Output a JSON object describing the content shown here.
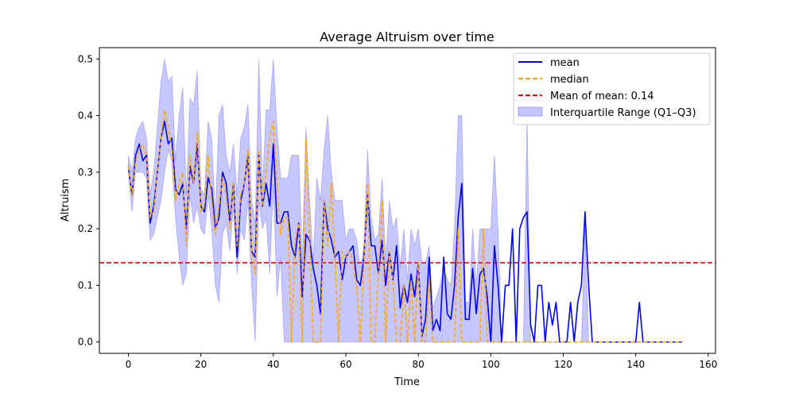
{
  "chart_data": {
    "type": "line",
    "title": "Average Altruism over time",
    "xlabel": "Time",
    "ylabel": "Altruism",
    "xlim": [
      -8,
      162
    ],
    "ylim": [
      -0.02,
      0.52
    ],
    "xticks": [
      0,
      20,
      40,
      60,
      80,
      100,
      120,
      140,
      160
    ],
    "yticks": [
      0.0,
      0.1,
      0.2,
      0.3,
      0.4,
      0.5
    ],
    "xtick_labels": [
      "0",
      "20",
      "40",
      "60",
      "80",
      "100",
      "120",
      "140",
      "160"
    ],
    "ytick_labels": [
      "0.0",
      "0.1",
      "0.2",
      "0.3",
      "0.4",
      "0.5"
    ],
    "grid": false,
    "legend_position": "top-right",
    "x": [
      0,
      1,
      2,
      3,
      4,
      5,
      6,
      7,
      8,
      9,
      10,
      11,
      12,
      13,
      14,
      15,
      16,
      17,
      18,
      19,
      20,
      21,
      22,
      23,
      24,
      25,
      26,
      27,
      28,
      29,
      30,
      31,
      32,
      33,
      34,
      35,
      36,
      37,
      38,
      39,
      40,
      41,
      42,
      43,
      44,
      45,
      46,
      47,
      48,
      49,
      50,
      51,
      52,
      53,
      54,
      55,
      56,
      57,
      58,
      59,
      60,
      61,
      62,
      63,
      64,
      65,
      66,
      67,
      68,
      69,
      70,
      71,
      72,
      73,
      74,
      75,
      76,
      77,
      78,
      79,
      80,
      81,
      82,
      83,
      84,
      85,
      86,
      87,
      88,
      89,
      90,
      91,
      92,
      93,
      94,
      95,
      96,
      97,
      98,
      99,
      100,
      101,
      102,
      103,
      104,
      105,
      106,
      107,
      108,
      109,
      110,
      111,
      112,
      113,
      114,
      115,
      116,
      117,
      118,
      119,
      120,
      121,
      122,
      123,
      124,
      125,
      126,
      127,
      128,
      129,
      130,
      131,
      132,
      133,
      134,
      135,
      136,
      137,
      138,
      139,
      140,
      141,
      142,
      143,
      144,
      145,
      146,
      147,
      148,
      149,
      150,
      151,
      152,
      153
    ],
    "series": [
      {
        "name": "mean",
        "style": "solid",
        "color": "#0000ff",
        "values": [
          0.31,
          0.26,
          0.33,
          0.35,
          0.32,
          0.33,
          0.21,
          0.24,
          0.3,
          0.36,
          0.39,
          0.35,
          0.36,
          0.27,
          0.26,
          0.28,
          0.2,
          0.31,
          0.28,
          0.35,
          0.24,
          0.23,
          0.29,
          0.27,
          0.2,
          0.22,
          0.3,
          0.28,
          0.21,
          0.28,
          0.15,
          0.25,
          0.28,
          0.33,
          0.16,
          0.15,
          0.33,
          0.24,
          0.28,
          0.24,
          0.35,
          0.21,
          0.21,
          0.23,
          0.23,
          0.17,
          0.15,
          0.21,
          0.08,
          0.19,
          0.18,
          0.13,
          0.1,
          0.05,
          0.25,
          0.2,
          0.18,
          0.15,
          0.16,
          0.11,
          0.15,
          0.16,
          0.17,
          0.11,
          0.1,
          0.15,
          0.26,
          0.17,
          0.17,
          0.12,
          0.18,
          0.1,
          0.16,
          0.11,
          0.17,
          0.06,
          0.1,
          0.07,
          0.12,
          0.08,
          0.14,
          0.01,
          0.04,
          0.15,
          0.02,
          0.04,
          0.02,
          0.15,
          0.05,
          0.04,
          0.1,
          0.22,
          0.28,
          0.04,
          0.04,
          0.13,
          0.05,
          0.12,
          0.13,
          0.08,
          0.0,
          0.17,
          0.1,
          0.0,
          0.1,
          0.1,
          0.2,
          0.0,
          0.2,
          0.22,
          0.23,
          0.03,
          0.0,
          0.1,
          0.1,
          0.0,
          0.07,
          0.03,
          0.07,
          0.0,
          0.0,
          0.0,
          0.07,
          0.0,
          0.07,
          0.1,
          0.23,
          0.1,
          0.0,
          0.0,
          0.0,
          0.0,
          0.0,
          0.0,
          0.0,
          0.0,
          0.0,
          0.0,
          0.0,
          0.0,
          0.0,
          0.07,
          0.0,
          0.0,
          0.0,
          0.0,
          0.0,
          0.0,
          0.0,
          0.0,
          0.0,
          0.0,
          0.0,
          0.0
        ]
      },
      {
        "name": "median",
        "style": "dashed",
        "color": "#ffa500",
        "values": [
          0.31,
          0.26,
          0.32,
          0.34,
          0.35,
          0.33,
          0.22,
          0.23,
          0.3,
          0.36,
          0.41,
          0.38,
          0.34,
          0.25,
          0.28,
          0.3,
          0.17,
          0.33,
          0.28,
          0.37,
          0.23,
          0.24,
          0.33,
          0.25,
          0.19,
          0.24,
          0.29,
          0.26,
          0.2,
          0.28,
          0.17,
          0.26,
          0.28,
          0.34,
          0.16,
          0.12,
          0.34,
          0.24,
          0.3,
          0.36,
          0.39,
          0.28,
          0.19,
          0.22,
          0.22,
          0.0,
          0.18,
          0.21,
          0.0,
          0.36,
          0.18,
          0.0,
          0.0,
          0.0,
          0.25,
          0.17,
          0.28,
          0.15,
          0.0,
          0.16,
          0.15,
          0.16,
          0.14,
          0.1,
          0.0,
          0.14,
          0.28,
          0.0,
          0.0,
          0.12,
          0.25,
          0.0,
          0.16,
          0.11,
          0.0,
          0.0,
          0.1,
          0.0,
          0.11,
          0.0,
          0.14,
          0.0,
          0.0,
          0.11,
          0.0,
          0.0,
          0.0,
          0.0,
          0.0,
          0.0,
          0.0,
          0.2,
          0.0,
          0.0,
          0.0,
          0.0,
          0.0,
          0.0,
          0.2,
          0.0,
          0.0,
          0.0,
          0.0,
          0.0,
          0.0,
          0.0,
          0.0,
          0.0,
          0.0,
          0.0,
          0.0,
          0.0,
          0.0,
          0.0,
          0.0,
          0.0,
          0.0,
          0.0,
          0.0,
          0.0,
          0.0,
          0.0,
          0.0,
          0.0,
          0.0,
          0.0,
          0.0,
          0.0,
          0.0,
          0.0,
          0.0,
          0.0,
          0.0,
          0.0,
          0.0,
          0.0,
          0.0,
          0.0,
          0.0,
          0.0,
          0.0,
          0.0,
          0.0,
          0.0,
          0.0,
          0.0,
          0.0,
          0.0,
          0.0,
          0.0,
          0.0,
          0.0,
          0.0,
          0.0
        ]
      }
    ],
    "band": {
      "name": "Interquartile Range (Q1–Q3)",
      "color": "#0000ff",
      "opacity": 0.22,
      "q1": [
        0.3,
        0.23,
        0.3,
        0.3,
        0.3,
        0.29,
        0.18,
        0.19,
        0.22,
        0.25,
        0.3,
        0.34,
        0.32,
        0.22,
        0.15,
        0.1,
        0.12,
        0.26,
        0.21,
        0.24,
        0.2,
        0.19,
        0.26,
        0.2,
        0.1,
        0.07,
        0.19,
        0.21,
        0.16,
        0.24,
        0.12,
        0.2,
        0.18,
        0.25,
        0.1,
        0.0,
        0.25,
        0.2,
        0.22,
        0.12,
        0.28,
        0.08,
        0.15,
        0.0,
        0.0,
        0.0,
        0.0,
        0.0,
        0.0,
        0.0,
        0.0,
        0.0,
        0.0,
        0.0,
        0.0,
        0.0,
        0.0,
        0.0,
        0.0,
        0.0,
        0.0,
        0.0,
        0.0,
        0.0,
        0.0,
        0.0,
        0.0,
        0.0,
        0.0,
        0.0,
        0.0,
        0.0,
        0.0,
        0.0,
        0.0,
        0.0,
        0.0,
        0.0,
        0.0,
        0.0,
        0.0,
        0.0,
        0.0,
        0.0,
        0.0,
        0.0,
        0.0,
        0.0,
        0.0,
        0.0,
        0.0,
        0.0,
        0.0,
        0.0,
        0.0,
        0.0,
        0.0,
        0.0,
        0.0,
        0.0,
        0.0,
        0.0,
        0.0,
        0.0,
        0.0,
        0.0,
        0.0,
        0.0,
        0.0,
        0.0,
        0.0,
        0.0,
        0.0,
        0.0,
        0.0,
        0.0,
        0.0,
        0.0,
        0.0,
        0.0,
        0.0,
        0.0,
        0.0,
        0.0,
        0.0,
        0.0,
        0.0,
        0.0,
        0.0,
        0.0,
        0.0,
        0.0,
        0.0,
        0.0,
        0.0,
        0.0,
        0.0,
        0.0,
        0.0,
        0.0,
        0.0,
        0.0,
        0.0,
        0.0,
        0.0,
        0.0,
        0.0,
        0.0,
        0.0,
        0.0,
        0.0,
        0.0,
        0.0,
        0.0
      ],
      "q3": [
        0.33,
        0.3,
        0.36,
        0.38,
        0.39,
        0.36,
        0.26,
        0.3,
        0.38,
        0.46,
        0.5,
        0.46,
        0.47,
        0.32,
        0.4,
        0.45,
        0.26,
        0.43,
        0.42,
        0.48,
        0.27,
        0.26,
        0.39,
        0.36,
        0.22,
        0.4,
        0.42,
        0.33,
        0.3,
        0.35,
        0.26,
        0.36,
        0.38,
        0.42,
        0.25,
        0.21,
        0.5,
        0.27,
        0.41,
        0.41,
        0.5,
        0.38,
        0.29,
        0.29,
        0.29,
        0.33,
        0.33,
        0.33,
        0.14,
        0.38,
        0.25,
        0.14,
        0.29,
        0.25,
        0.34,
        0.4,
        0.3,
        0.25,
        0.25,
        0.25,
        0.18,
        0.2,
        0.2,
        0.18,
        0.13,
        0.17,
        0.34,
        0.22,
        0.18,
        0.19,
        0.29,
        0.14,
        0.25,
        0.2,
        0.22,
        0.13,
        0.2,
        0.11,
        0.2,
        0.17,
        0.2,
        0.14,
        0.14,
        0.17,
        0.06,
        0.08,
        0.1,
        0.13,
        0.11,
        0.1,
        0.2,
        0.4,
        0.4,
        0.07,
        0.07,
        0.2,
        0.1,
        0.2,
        0.2,
        0.2,
        0.2,
        0.33,
        0.2,
        0.0,
        0.0,
        0.0,
        0.0,
        0.0,
        0.0,
        0.0,
        0.4,
        0.0,
        0.0,
        0.0,
        0.0,
        0.0,
        0.0,
        0.0,
        0.0,
        0.0,
        0.0,
        0.0,
        0.0,
        0.0,
        0.0,
        0.0,
        0.2,
        0.0,
        0.0,
        0.0,
        0.0,
        0.0,
        0.0,
        0.0,
        0.0,
        0.0,
        0.0,
        0.0,
        0.0,
        0.0,
        0.0,
        0.0,
        0.0,
        0.0,
        0.0,
        0.0,
        0.0,
        0.0,
        0.0,
        0.0,
        0.0,
        0.0,
        0.0,
        0.0
      ]
    },
    "reference_line": {
      "name": "Mean of mean: 0.14",
      "value": 0.14,
      "color": "#ff0000",
      "style": "dashed"
    }
  }
}
